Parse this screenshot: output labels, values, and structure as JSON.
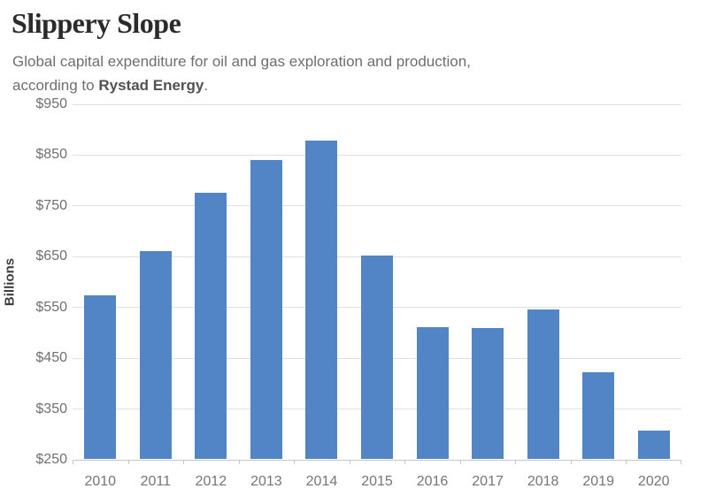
{
  "header": {
    "title": "Slippery Slope",
    "subtitle_line1": "Global capital expenditure for oil and gas exploration and production,",
    "subtitle_line2_prefix": "according to ",
    "subtitle_source": "Rystad Energy",
    "subtitle_line2_suffix": "."
  },
  "chart_data": {
    "type": "bar",
    "title": "Slippery Slope",
    "subtitle": "Global capital expenditure for oil and gas exploration and production, according to Rystad Energy.",
    "categories": [
      "2010",
      "2011",
      "2012",
      "2013",
      "2014",
      "2015",
      "2016",
      "2017",
      "2018",
      "2019",
      "2020"
    ],
    "values": [
      573,
      660,
      775,
      838,
      877,
      650,
      510,
      508,
      545,
      421,
      306
    ],
    "xlabel": "",
    "ylabel": "Billions",
    "ylim": [
      250,
      950
    ],
    "ytick_step": 100,
    "ytick_prefix": "$",
    "grid": true,
    "legend": false,
    "bar_color": "#5285C6",
    "gridline_color": "#e0e0e0",
    "axis_color": "#c6c6c6",
    "tick_label_color": "#6f6f6f"
  }
}
